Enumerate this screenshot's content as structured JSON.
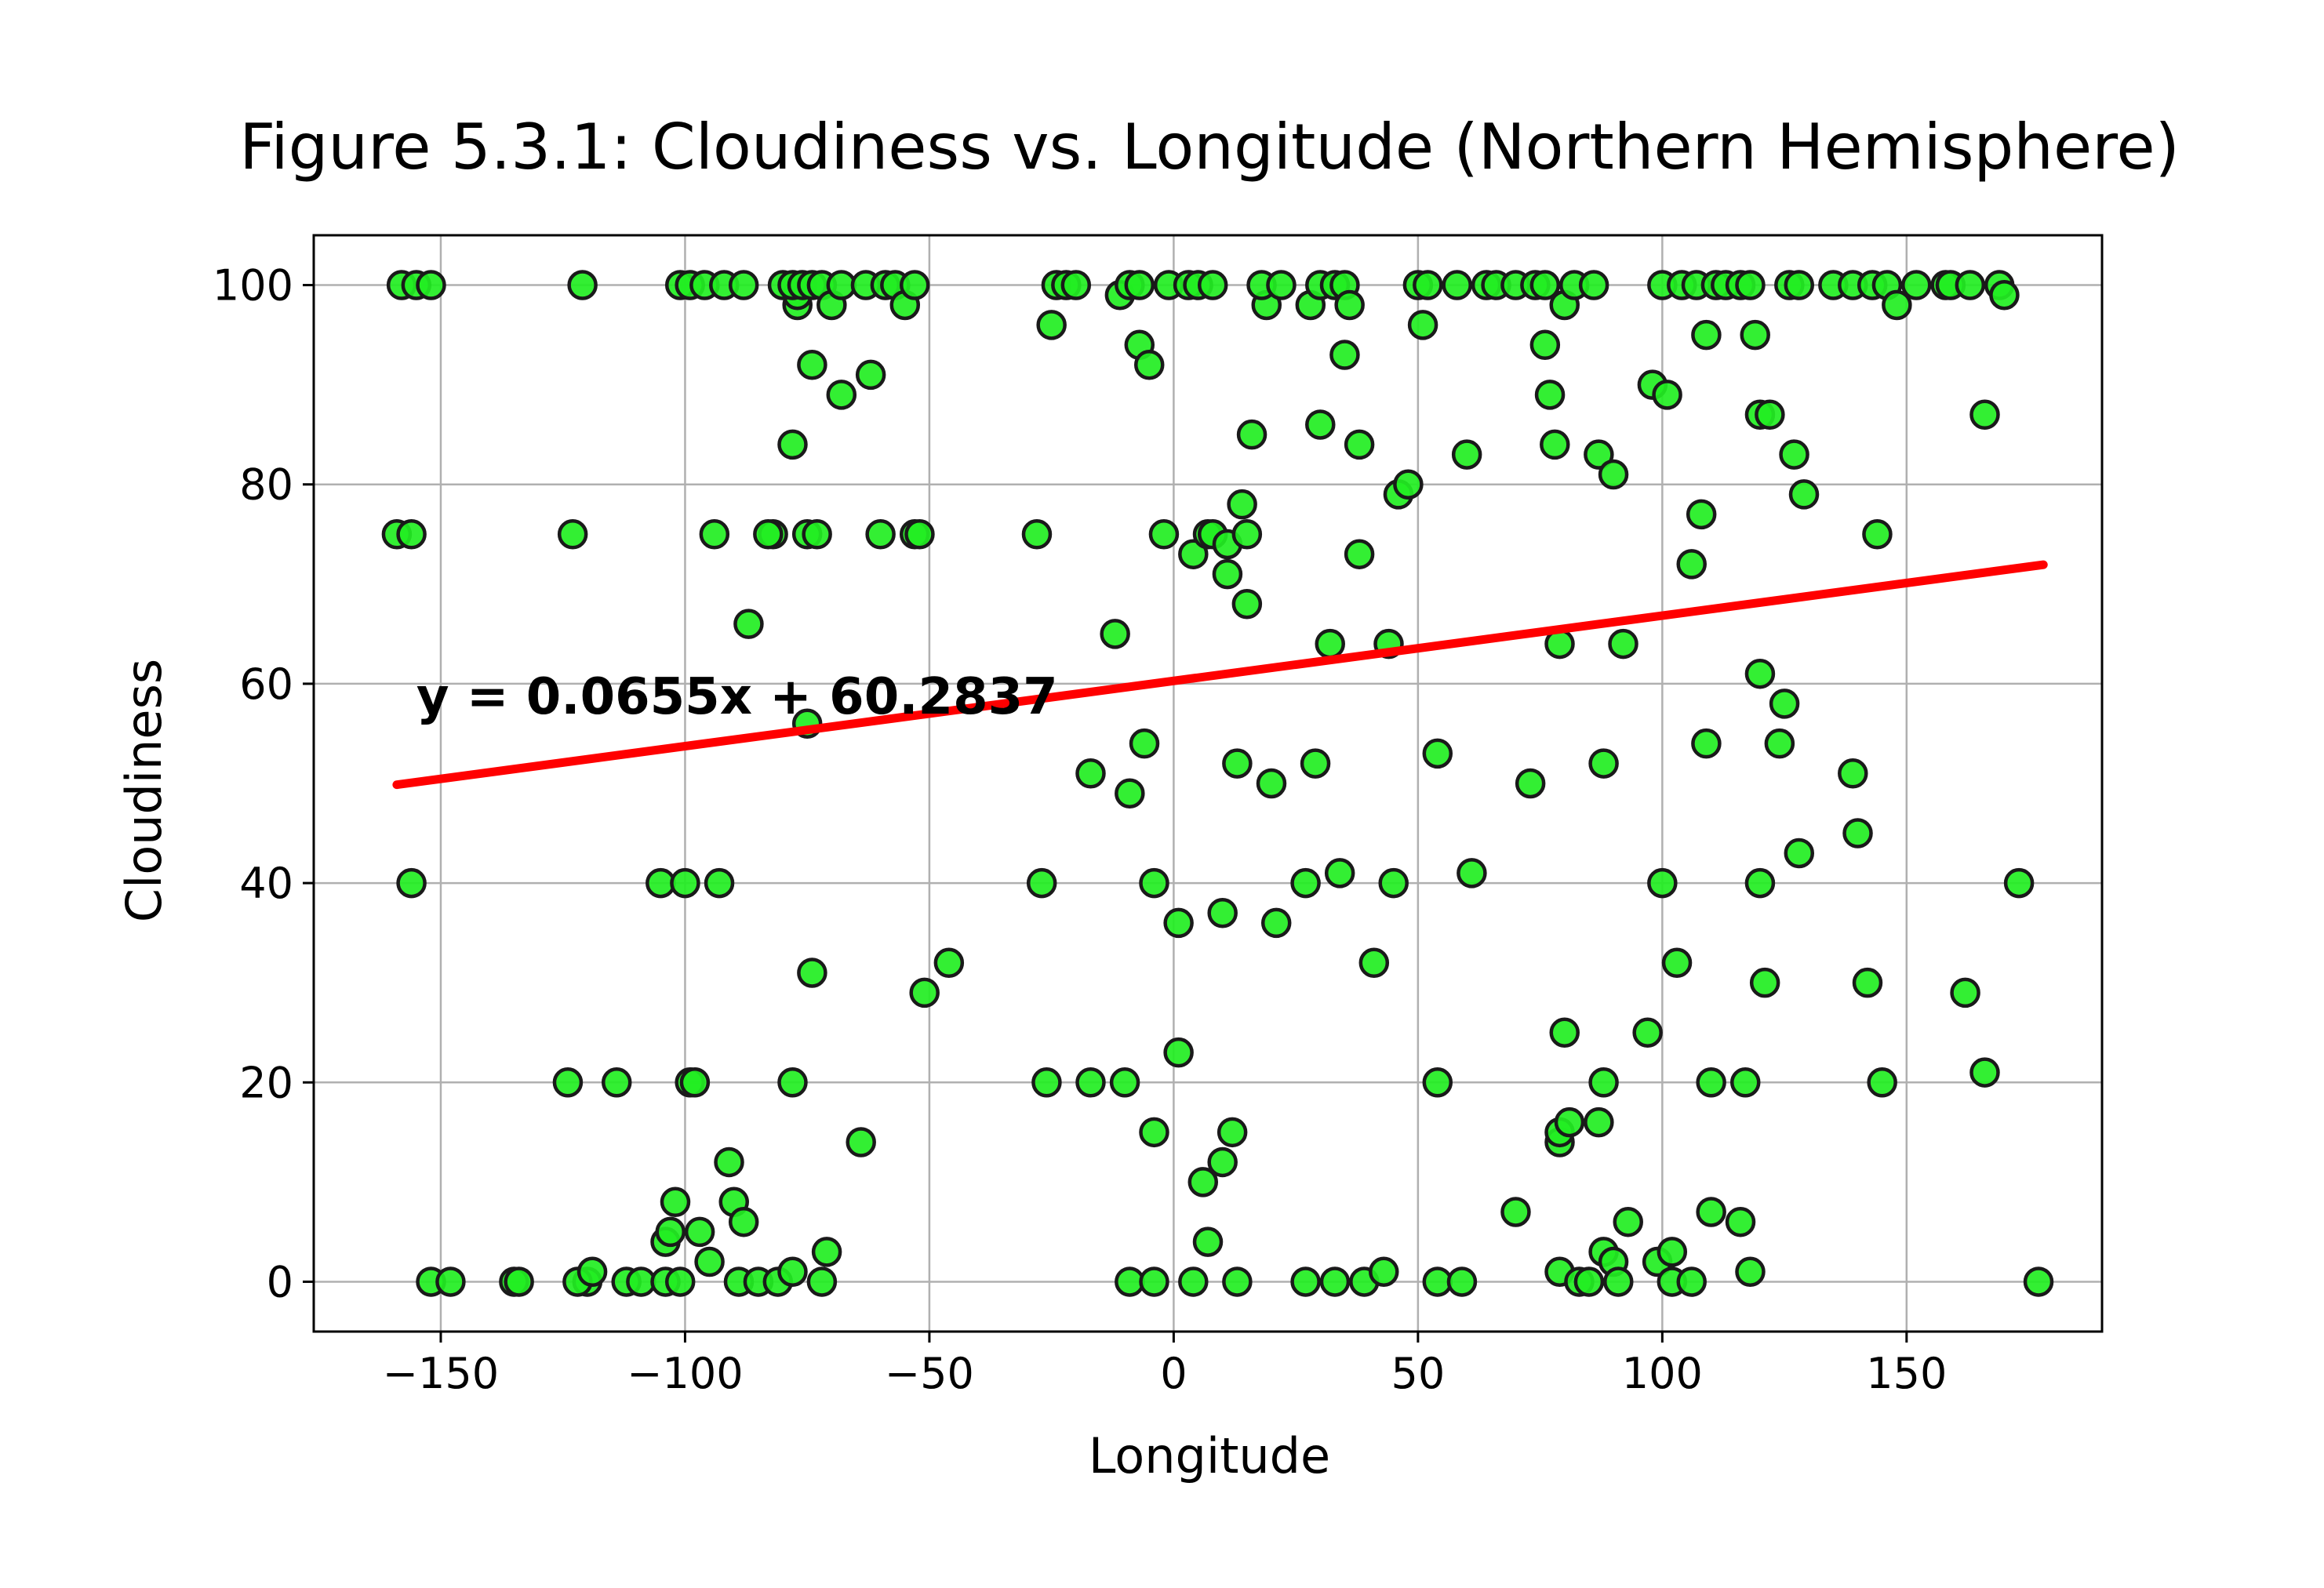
{
  "chart_data": {
    "type": "scatter",
    "title": "Figure 5.3.1: Cloudiness vs. Longitude (Northern Hemisphere)",
    "xlabel": "Longitude",
    "ylabel": "Cloudiness",
    "xlim": [
      -176,
      190
    ],
    "ylim": [
      -5,
      105
    ],
    "xticks": [
      -150,
      -100,
      -50,
      0,
      50,
      100,
      150
    ],
    "xtick_labels": [
      "−150",
      "−100",
      "−50",
      "0",
      "50",
      "100",
      "150"
    ],
    "yticks": [
      0,
      20,
      40,
      60,
      80,
      100
    ],
    "ytick_labels": [
      "0",
      "20",
      "40",
      "60",
      "80",
      "100"
    ],
    "grid": true,
    "colors": {
      "marker_fill": "#22ee22",
      "marker_edge": "#1a1a1a",
      "regression_line": "#ff0000",
      "equation_text": "#0000ff",
      "grid": "#b0b0b0"
    },
    "annotation": {
      "text": "y = 0.0655x + 60.2837",
      "x": -155,
      "y": 57
    },
    "regression": {
      "slope": 0.0655,
      "intercept": 60.2837,
      "x_range": [
        -159,
        178
      ]
    },
    "points": [
      [
        -159,
        75
      ],
      [
        -158,
        100
      ],
      [
        -156,
        75
      ],
      [
        -155,
        100
      ],
      [
        -152,
        100
      ],
      [
        -156,
        40
      ],
      [
        -152,
        0
      ],
      [
        -148,
        0
      ],
      [
        -135,
        0
      ],
      [
        -134,
        0
      ],
      [
        -121,
        100
      ],
      [
        -123,
        75
      ],
      [
        -124,
        20
      ],
      [
        -114,
        20
      ],
      [
        -120,
        0
      ],
      [
        -122,
        0
      ],
      [
        -119,
        1
      ],
      [
        -112,
        0
      ],
      [
        -109,
        0
      ],
      [
        -104,
        0
      ],
      [
        -101,
        0
      ],
      [
        -104,
        4
      ],
      [
        -103,
        5
      ],
      [
        -102,
        8
      ],
      [
        -105,
        40
      ],
      [
        -100,
        40
      ],
      [
        -99,
        20
      ],
      [
        -98,
        20
      ],
      [
        -97,
        5
      ],
      [
        -95,
        2
      ],
      [
        -93,
        40
      ],
      [
        -91,
        12
      ],
      [
        -90,
        8
      ],
      [
        -88,
        6
      ],
      [
        -89,
        0
      ],
      [
        -85,
        0
      ],
      [
        -81,
        0
      ],
      [
        -78,
        1
      ],
      [
        -72,
        0
      ],
      [
        -71,
        3
      ],
      [
        -74,
        31
      ],
      [
        -78,
        20
      ],
      [
        -87,
        66
      ],
      [
        -94,
        75
      ],
      [
        -82,
        75
      ],
      [
        -83,
        75
      ],
      [
        -75,
        75
      ],
      [
        -73,
        75
      ],
      [
        -75,
        56
      ],
      [
        -74,
        92
      ],
      [
        -78,
        84
      ],
      [
        -77,
        98
      ],
      [
        -77,
        99
      ],
      [
        -80,
        100
      ],
      [
        -78,
        100
      ],
      [
        -76,
        100
      ],
      [
        -74,
        100
      ],
      [
        -72,
        100
      ],
      [
        -70,
        98
      ],
      [
        -68,
        89
      ],
      [
        -68,
        100
      ],
      [
        -63,
        100
      ],
      [
        -62,
        91
      ],
      [
        -59,
        100
      ],
      [
        -57,
        100
      ],
      [
        -55,
        98
      ],
      [
        -53,
        100
      ],
      [
        -60,
        75
      ],
      [
        -53,
        75
      ],
      [
        -52,
        75
      ],
      [
        -51,
        29
      ],
      [
        -46,
        32
      ],
      [
        -64,
        14
      ],
      [
        -101,
        100
      ],
      [
        -99,
        100
      ],
      [
        -96,
        100
      ],
      [
        -92,
        100
      ],
      [
        -88,
        100
      ],
      [
        -28,
        75
      ],
      [
        -27,
        40
      ],
      [
        -26,
        20
      ],
      [
        -17,
        20
      ],
      [
        -17,
        51
      ],
      [
        -10,
        20
      ],
      [
        -9,
        49
      ],
      [
        -9,
        0
      ],
      [
        -4,
        0
      ],
      [
        -4,
        15
      ],
      [
        -4,
        40
      ],
      [
        -6,
        54
      ],
      [
        -12,
        65
      ],
      [
        -11,
        99
      ],
      [
        -9,
        100
      ],
      [
        -7,
        100
      ],
      [
        -7,
        94
      ],
      [
        -5,
        92
      ],
      [
        -2,
        75
      ],
      [
        1,
        23
      ],
      [
        1,
        36
      ],
      [
        4,
        73
      ],
      [
        4,
        0
      ],
      [
        6,
        10
      ],
      [
        7,
        4
      ],
      [
        7,
        75
      ],
      [
        8,
        75
      ],
      [
        10,
        12
      ],
      [
        10,
        37
      ],
      [
        11,
        71
      ],
      [
        11,
        74
      ],
      [
        12,
        15
      ],
      [
        13,
        0
      ],
      [
        13,
        52
      ],
      [
        14,
        78
      ],
      [
        15,
        75
      ],
      [
        15,
        68
      ],
      [
        16,
        85
      ],
      [
        20,
        50
      ],
      [
        21,
        36
      ],
      [
        19,
        98
      ],
      [
        18,
        100
      ],
      [
        22,
        100
      ],
      [
        -25,
        96
      ],
      [
        -24,
        100
      ],
      [
        -22,
        100
      ],
      [
        -20,
        100
      ],
      [
        -1,
        100
      ],
      [
        3,
        100
      ],
      [
        5,
        100
      ],
      [
        8,
        100
      ],
      [
        27,
        0
      ],
      [
        33,
        0
      ],
      [
        39,
        0
      ],
      [
        43,
        1
      ],
      [
        27,
        40
      ],
      [
        29,
        52
      ],
      [
        30,
        86
      ],
      [
        28,
        98
      ],
      [
        30,
        100
      ],
      [
        33,
        100
      ],
      [
        35,
        100
      ],
      [
        32,
        64
      ],
      [
        34,
        41
      ],
      [
        35,
        93
      ],
      [
        36,
        98
      ],
      [
        38,
        84
      ],
      [
        38,
        73
      ],
      [
        41,
        32
      ],
      [
        45,
        40
      ],
      [
        44,
        64
      ],
      [
        46,
        79
      ],
      [
        48,
        80
      ],
      [
        50,
        100
      ],
      [
        51,
        96
      ],
      [
        52,
        100
      ],
      [
        54,
        53
      ],
      [
        54,
        20
      ],
      [
        54,
        0
      ],
      [
        59,
        0
      ],
      [
        58,
        100
      ],
      [
        60,
        83
      ],
      [
        61,
        41
      ],
      [
        64,
        100
      ],
      [
        66,
        100
      ],
      [
        70,
        7
      ],
      [
        70,
        100
      ],
      [
        73,
        50
      ],
      [
        74,
        100
      ],
      [
        76,
        100
      ],
      [
        76,
        94
      ],
      [
        77,
        89
      ],
      [
        78,
        84
      ],
      [
        79,
        64
      ],
      [
        79,
        1
      ],
      [
        79,
        14
      ],
      [
        79,
        15
      ],
      [
        80,
        25
      ],
      [
        81,
        16
      ],
      [
        80,
        98
      ],
      [
        82,
        100
      ],
      [
        83,
        0
      ],
      [
        85,
        0
      ],
      [
        86,
        100
      ],
      [
        87,
        83
      ],
      [
        87,
        16
      ],
      [
        88,
        3
      ],
      [
        88,
        20
      ],
      [
        88,
        52
      ],
      [
        90,
        81
      ],
      [
        90,
        2
      ],
      [
        91,
        0
      ],
      [
        92,
        64
      ],
      [
        93,
        6
      ],
      [
        97,
        25
      ],
      [
        98,
        90
      ],
      [
        99,
        2
      ],
      [
        100,
        40
      ],
      [
        100,
        100
      ],
      [
        101,
        89
      ],
      [
        102,
        3
      ],
      [
        102,
        0
      ],
      [
        103,
        32
      ],
      [
        104,
        100
      ],
      [
        106,
        72
      ],
      [
        106,
        0
      ],
      [
        107,
        100
      ],
      [
        108,
        77
      ],
      [
        109,
        54
      ],
      [
        109,
        95
      ],
      [
        110,
        7
      ],
      [
        110,
        20
      ],
      [
        111,
        100
      ],
      [
        113,
        100
      ],
      [
        116,
        6
      ],
      [
        116,
        100
      ],
      [
        117,
        20
      ],
      [
        118,
        100
      ],
      [
        118,
        1
      ],
      [
        119,
        95
      ],
      [
        120,
        87
      ],
      [
        120,
        61
      ],
      [
        120,
        40
      ],
      [
        121,
        30
      ],
      [
        122,
        87
      ],
      [
        124,
        54
      ],
      [
        125,
        58
      ],
      [
        126,
        100
      ],
      [
        127,
        83
      ],
      [
        128,
        43
      ],
      [
        128,
        100
      ],
      [
        129,
        79
      ],
      [
        135,
        100
      ],
      [
        139,
        100
      ],
      [
        139,
        51
      ],
      [
        140,
        45
      ],
      [
        142,
        30
      ],
      [
        143,
        100
      ],
      [
        144,
        75
      ],
      [
        145,
        20
      ],
      [
        146,
        100
      ],
      [
        148,
        98
      ],
      [
        152,
        100
      ],
      [
        158,
        100
      ],
      [
        159,
        100
      ],
      [
        162,
        29
      ],
      [
        163,
        100
      ],
      [
        166,
        87
      ],
      [
        166,
        21
      ],
      [
        169,
        100
      ],
      [
        170,
        99
      ],
      [
        173,
        40
      ],
      [
        177,
        0
      ]
    ]
  }
}
